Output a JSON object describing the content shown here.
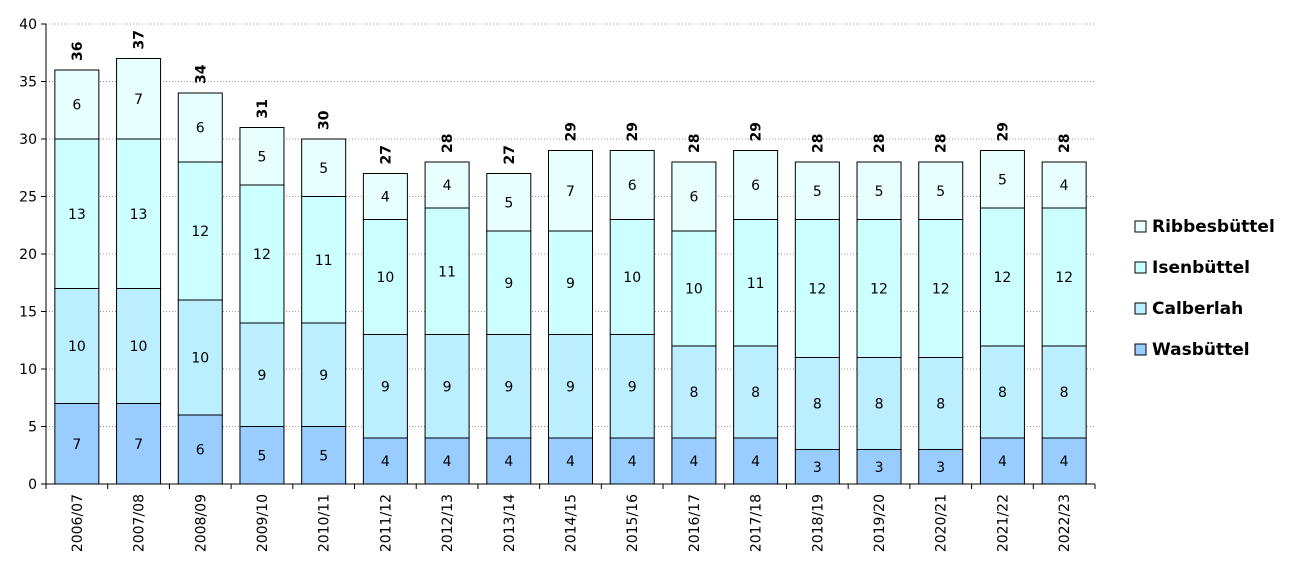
{
  "chart_data": {
    "type": "bar",
    "stacked": true,
    "categories": [
      "2006/07",
      "2007/08",
      "2008/09",
      "2009/10",
      "2010/11",
      "2011/12",
      "2012/13",
      "2013/14",
      "2014/15",
      "2015/16",
      "2016/17",
      "2017/18",
      "2018/19",
      "2019/20",
      "2020/21",
      "2021/22",
      "2022/23"
    ],
    "series": [
      {
        "name": "Wasbüttel",
        "color": "#99ccff",
        "values": [
          7,
          7,
          6,
          5,
          5,
          4,
          4,
          4,
          4,
          4,
          4,
          4,
          3,
          3,
          3,
          4,
          4
        ]
      },
      {
        "name": "Calberlah",
        "color": "#bbeeff",
        "values": [
          10,
          10,
          10,
          9,
          9,
          9,
          9,
          9,
          9,
          9,
          8,
          8,
          8,
          8,
          8,
          8,
          8
        ]
      },
      {
        "name": "Isenbüttel",
        "color": "#ccffff",
        "values": [
          13,
          13,
          12,
          12,
          11,
          10,
          11,
          9,
          9,
          10,
          10,
          11,
          12,
          12,
          12,
          12,
          12
        ]
      },
      {
        "name": "Ribbesbüttel",
        "color": "#e8ffff",
        "values": [
          6,
          7,
          6,
          5,
          5,
          4,
          4,
          5,
          7,
          6,
          6,
          6,
          5,
          5,
          5,
          5,
          4
        ]
      }
    ],
    "totals": [
      "36",
      "37",
      "34",
      "31",
      "30",
      "27",
      "28",
      "27",
      "29",
      "29",
      "28",
      "29",
      "28",
      "28",
      "28",
      "29",
      "28"
    ],
    "y_ticks": [
      "0",
      "5",
      "10",
      "15",
      "20",
      "25",
      "30",
      "35",
      "40"
    ],
    "ylim": [
      0,
      40
    ],
    "title": "",
    "xlabel": "",
    "ylabel": "",
    "grid": "horizontal dotted",
    "legend_position": "right"
  }
}
